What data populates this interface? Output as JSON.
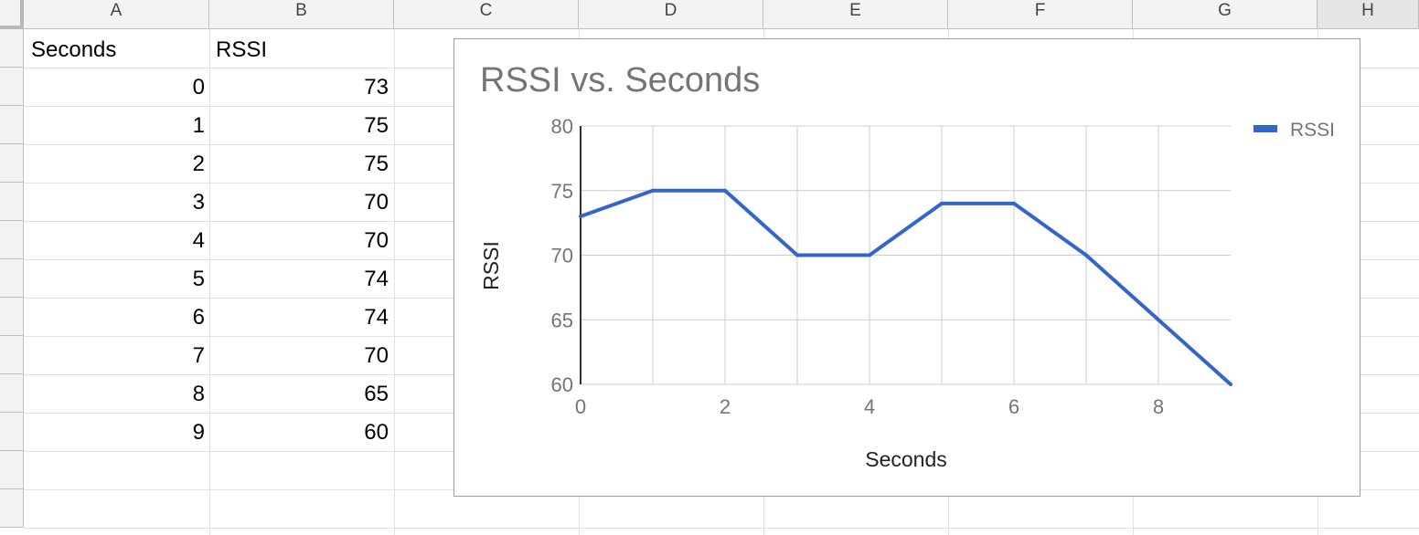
{
  "columns": [
    "A",
    "B",
    "C",
    "D",
    "E",
    "F",
    "G",
    "H"
  ],
  "selected_column": "H",
  "headers": {
    "col_a": "Seconds",
    "col_b": "RSSI"
  },
  "rows": [
    {
      "seconds": "0",
      "rssi": "73"
    },
    {
      "seconds": "1",
      "rssi": "75"
    },
    {
      "seconds": "2",
      "rssi": "75"
    },
    {
      "seconds": "3",
      "rssi": "70"
    },
    {
      "seconds": "4",
      "rssi": "70"
    },
    {
      "seconds": "5",
      "rssi": "74"
    },
    {
      "seconds": "6",
      "rssi": "74"
    },
    {
      "seconds": "7",
      "rssi": "70"
    },
    {
      "seconds": "8",
      "rssi": "65"
    },
    {
      "seconds": "9",
      "rssi": "60"
    }
  ],
  "chart_data": {
    "type": "line",
    "title": "RSSI vs. Seconds",
    "xlabel": "Seconds",
    "ylabel": "RSSI",
    "x": [
      0,
      1,
      2,
      3,
      4,
      5,
      6,
      7,
      8,
      9
    ],
    "series": [
      {
        "name": "RSSI",
        "values": [
          73,
          75,
          75,
          70,
          70,
          74,
          74,
          70,
          65,
          60
        ],
        "color": "#3366cc"
      }
    ],
    "xlim": [
      0,
      9
    ],
    "ylim": [
      60,
      80
    ],
    "xticks": [
      0,
      2,
      4,
      6,
      8
    ],
    "yticks": [
      60,
      65,
      70,
      75,
      80
    ],
    "grid": true,
    "legend_position": "top-right"
  },
  "colors": {
    "title_text": "#757575",
    "axis_text": "#757575",
    "label_text": "#222222",
    "gridline": "#cccccc",
    "axis_line": "#333333"
  }
}
